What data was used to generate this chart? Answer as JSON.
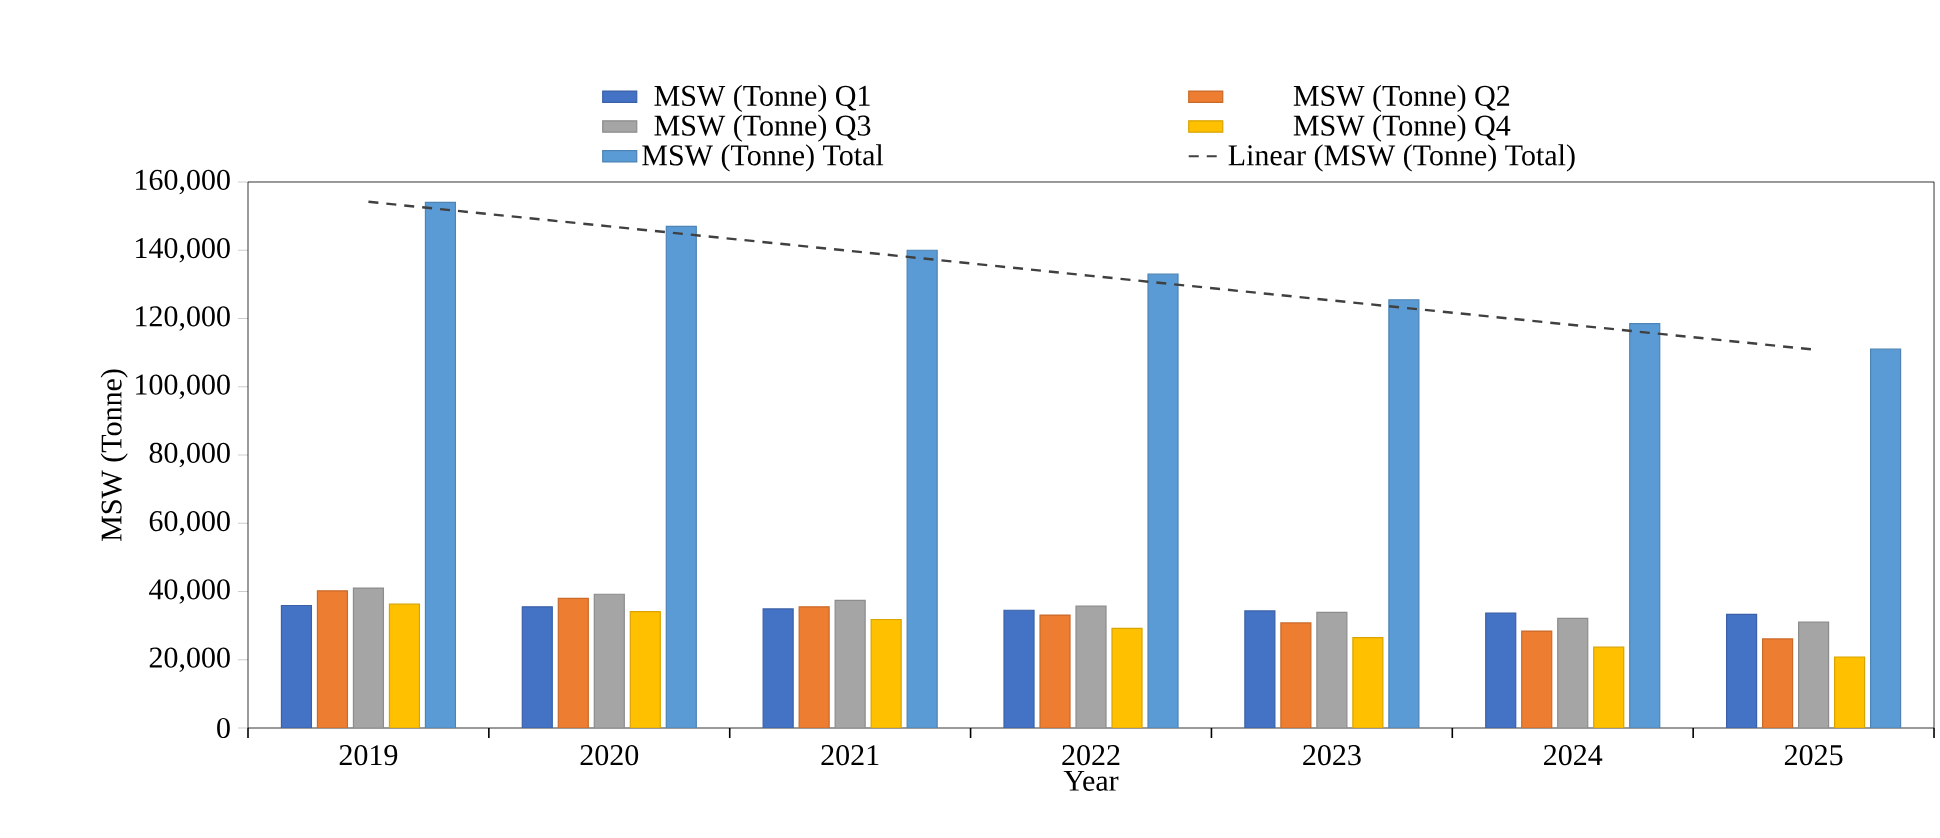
{
  "chart_data": {
    "type": "bar",
    "xlabel": "Year",
    "ylabel": "MSW (Tonne)",
    "categories": [
      "2019",
      "2020",
      "2021",
      "2022",
      "2023",
      "2024",
      "2025"
    ],
    "series": [
      {
        "name": "MSW (Tonne) Q1",
        "color": "#4472c4",
        "values": [
          35900,
          35500,
          34900,
          34500,
          34300,
          33700,
          33300
        ]
      },
      {
        "name": "MSW (Tonne) Q2",
        "color": "#ed7d31",
        "values": [
          40200,
          38000,
          35500,
          33100,
          30800,
          28400,
          26100
        ]
      },
      {
        "name": "MSW (Tonne) Q3",
        "color": "#a5a5a5",
        "values": [
          41000,
          39200,
          37400,
          35700,
          33900,
          32100,
          31000
        ]
      },
      {
        "name": "MSW (Tonne) Q4",
        "color": "#ffc000",
        "values": [
          36300,
          34100,
          31800,
          29200,
          26500,
          23700,
          20800
        ]
      },
      {
        "name": "MSW (Tonne) Total",
        "color": "#5b9bd5",
        "values": [
          154000,
          147000,
          140000,
          133000,
          125500,
          118500,
          111000
        ]
      },
      {
        "name": "Linear (MSW (Tonne) Total)",
        "type": "line",
        "line_style": "dashed",
        "color": "#404040",
        "values": [
          154200,
          147000,
          139800,
          132500,
          125300,
          118100,
          110900
        ]
      }
    ],
    "ylim": [
      0,
      160000
    ],
    "yticks": [
      {
        "value": 0,
        "label": "0"
      },
      {
        "value": 20000,
        "label": "20,000"
      },
      {
        "value": 40000,
        "label": "40,000"
      },
      {
        "value": 60000,
        "label": "60,000"
      },
      {
        "value": 80000,
        "label": "80,000"
      },
      {
        "value": 100000,
        "label": "100,000"
      },
      {
        "value": 120000,
        "label": "120,000"
      },
      {
        "value": 140000,
        "label": "140,000"
      },
      {
        "value": 160000,
        "label": "160,000"
      }
    ],
    "legend": "top"
  }
}
